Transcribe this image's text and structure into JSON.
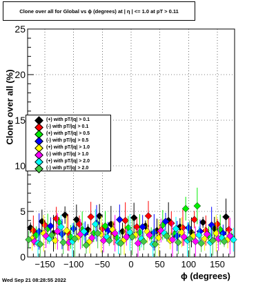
{
  "chart_data": {
    "type": "scatter",
    "title": "Clone  over all for Global vs ϕ (degrees) at |  η | <= 1.0 at pT > 0.11",
    "xlabel": "ϕ (degrees)",
    "ylabel": "Clone  over all (%)",
    "xlim": [
      -180,
      180
    ],
    "ylim": [
      0,
      25
    ],
    "x_ticks": [
      -150,
      -100,
      -50,
      0,
      50,
      100,
      150
    ],
    "y_ticks": [
      0,
      5,
      10,
      15,
      20,
      25
    ],
    "grid": true,
    "legend_position": "left-middle",
    "series": [
      {
        "name": "(+) with pT/|q| > 0.1",
        "color": "#000000",
        "x": [
          -175,
          -155,
          -135,
          -115,
          -95,
          -75,
          -55,
          -35,
          -15,
          5,
          25,
          45,
          65,
          85,
          105,
          125,
          145,
          165
        ],
        "y": [
          3.2,
          3.9,
          2.6,
          4.6,
          4.1,
          3.0,
          4.5,
          3.6,
          2.8,
          4.3,
          3.4,
          2.9,
          4.0,
          3.3,
          2.7,
          3.8,
          3.1,
          4.4
        ]
      },
      {
        "name": "(-) with pT/|q| > 0.1",
        "color": "#ff0000",
        "x": [
          -170,
          -150,
          -130,
          -110,
          -90,
          -70,
          -50,
          -30,
          -10,
          10,
          30,
          50,
          70,
          90,
          110,
          130,
          150,
          170
        ],
        "y": [
          2.9,
          3.5,
          4.2,
          2.7,
          3.6,
          4.4,
          3.1,
          2.6,
          4.0,
          3.3,
          4.5,
          2.8,
          3.7,
          3.2,
          4.1,
          2.9,
          3.6,
          3.0
        ]
      },
      {
        "name": "(+) with pT/|q| > 0.5",
        "color": "#00ee00",
        "x": [
          -165,
          -145,
          -125,
          -105,
          -85,
          -65,
          -45,
          -25,
          -5,
          15,
          35,
          55,
          75,
          95,
          115,
          135,
          155,
          175
        ],
        "y": [
          2.4,
          3.1,
          3.8,
          2.2,
          3.0,
          2.6,
          3.4,
          2.1,
          3.2,
          2.7,
          2.3,
          3.5,
          2.5,
          5.3,
          5.6,
          2.4,
          3.0,
          2.2
        ]
      },
      {
        "name": "(-) with pT/|q| > 0.5",
        "color": "#0000ff",
        "x": [
          -160,
          -140,
          -120,
          -100,
          -80,
          -60,
          -40,
          -20,
          0,
          20,
          40,
          60,
          80,
          100,
          120,
          140,
          160
        ],
        "y": [
          2.8,
          3.4,
          2.5,
          3.1,
          2.6,
          3.7,
          2.9,
          4.1,
          2.4,
          3.3,
          2.7,
          3.9,
          2.3,
          3.2,
          2.8,
          3.5,
          2.6
        ]
      },
      {
        "name": "(+) with pT/|q| > 1.0",
        "color": "#ffff00",
        "x": [
          -172,
          -152,
          -132,
          -112,
          -92,
          -72,
          -52,
          -32,
          -12,
          8,
          28,
          48,
          68,
          88,
          108,
          128,
          148,
          168
        ],
        "y": [
          2.0,
          2.6,
          1.8,
          2.9,
          2.2,
          1.7,
          2.5,
          3.0,
          1.9,
          2.4,
          2.8,
          2.1,
          1.8,
          2.7,
          2.3,
          2.0,
          2.6,
          1.9
        ]
      },
      {
        "name": "(-) with pT/|q| > 1.0",
        "color": "#ff00ff",
        "x": [
          -168,
          -148,
          -128,
          -108,
          -88,
          -68,
          -48,
          -28,
          -8,
          12,
          32,
          52,
          72,
          92,
          112,
          132,
          152,
          172
        ],
        "y": [
          1.7,
          2.3,
          2.8,
          1.6,
          2.5,
          2.1,
          1.8,
          2.6,
          2.2,
          1.5,
          2.4,
          2.9,
          1.9,
          2.2,
          1.7,
          2.5,
          2.0,
          2.3
        ]
      },
      {
        "name": "(+) with pT/|q| > 2.0",
        "color": "#00ffff",
        "x": [
          -162,
          -142,
          -122,
          -102,
          -82,
          -62,
          -42,
          -22,
          -2,
          18,
          38,
          58,
          78,
          98,
          118,
          138,
          158,
          178
        ],
        "y": [
          1.5,
          2.0,
          3.3,
          1.7,
          2.8,
          3.6,
          2.2,
          1.6,
          2.7,
          2.0,
          1.4,
          2.6,
          3.1,
          1.8,
          2.4,
          1.6,
          2.1,
          1.9
        ]
      },
      {
        "name": "(-) with pT/|q| > 2.0",
        "color": "#44cc44",
        "x": [
          -178,
          -158,
          -138,
          -118,
          -98,
          -78,
          -58,
          -38,
          -18,
          2,
          22,
          42,
          62,
          82,
          102,
          122,
          142,
          162
        ],
        "y": [
          1.9,
          1.4,
          2.4,
          1.6,
          2.0,
          1.3,
          2.6,
          1.8,
          1.5,
          2.2,
          1.7,
          1.4,
          2.3,
          1.6,
          2.0,
          1.5,
          1.8,
          1.7
        ]
      }
    ]
  },
  "datestamp": "Wed Sep 21 08:28:55 2022"
}
